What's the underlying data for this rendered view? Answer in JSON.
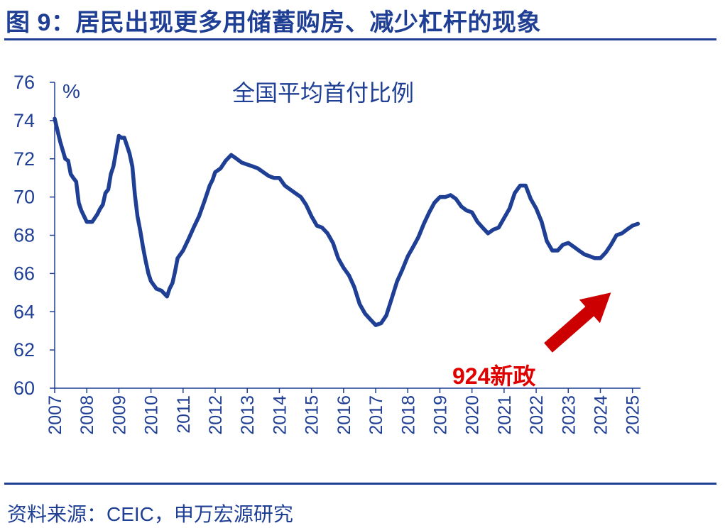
{
  "figure": {
    "title": "图 9：居民出现更多用储蓄购房、减少杠杆的现象",
    "source": "资料来源：CEIC，申万宏源研究"
  },
  "colors": {
    "primary": "#1f3f95",
    "annotation": "#cc0000",
    "annotation_text": "#e00000"
  },
  "chart_data": {
    "type": "line",
    "title": "全国平均首付比例",
    "ylabel": "%",
    "xlabel": "",
    "ylim": [
      60,
      76
    ],
    "yticks": [
      "60",
      "62",
      "64",
      "66",
      "68",
      "70",
      "72",
      "74",
      "76"
    ],
    "xlim": [
      2007,
      2025.25
    ],
    "xticks": [
      "2007",
      "2008",
      "2009",
      "2010",
      "2011",
      "2012",
      "2013",
      "2014",
      "2015",
      "2016",
      "2017",
      "2018",
      "2019",
      "2020",
      "2021",
      "2022",
      "2023",
      "2024",
      "2025"
    ],
    "grid": false,
    "legend": "none",
    "series": [
      {
        "color": "#1f3f95",
        "x": [
          2007.0,
          2007.17,
          2007.33,
          2007.42,
          2007.5,
          2007.58,
          2007.67,
          2007.75,
          2007.83,
          2008.0,
          2008.17,
          2008.33,
          2008.42,
          2008.5,
          2008.58,
          2008.67,
          2008.75,
          2008.83,
          2009.0,
          2009.08,
          2009.17,
          2009.25,
          2009.33,
          2009.42,
          2009.5,
          2009.58,
          2009.67,
          2009.75,
          2009.83,
          2009.92,
          2010.0,
          2010.17,
          2010.33,
          2010.5,
          2010.58,
          2010.67,
          2010.75,
          2010.83,
          2011.0,
          2011.17,
          2011.33,
          2011.5,
          2011.67,
          2011.83,
          2011.92,
          2012.0,
          2012.17,
          2012.33,
          2012.5,
          2012.67,
          2012.83,
          2013.0,
          2013.17,
          2013.33,
          2013.5,
          2013.67,
          2013.83,
          2014.0,
          2014.17,
          2014.33,
          2014.5,
          2014.67,
          2014.83,
          2015.0,
          2015.17,
          2015.33,
          2015.5,
          2015.67,
          2015.83,
          2016.0,
          2016.17,
          2016.33,
          2016.5,
          2016.67,
          2016.83,
          2017.0,
          2017.17,
          2017.33,
          2017.5,
          2017.67,
          2017.83,
          2018.0,
          2018.17,
          2018.33,
          2018.5,
          2018.67,
          2018.83,
          2019.0,
          2019.17,
          2019.33,
          2019.5,
          2019.67,
          2019.83,
          2020.0,
          2020.17,
          2020.33,
          2020.5,
          2020.67,
          2020.83,
          2021.0,
          2021.17,
          2021.33,
          2021.5,
          2021.67,
          2021.83,
          2022.0,
          2022.17,
          2022.33,
          2022.5,
          2022.67,
          2022.83,
          2023.0,
          2023.17,
          2023.33,
          2023.5,
          2023.67,
          2023.83,
          2024.0,
          2024.17,
          2024.33,
          2024.5,
          2024.67,
          2024.83,
          2025.0,
          2025.17
        ],
        "y": [
          74.1,
          72.9,
          72.0,
          71.9,
          71.2,
          71.0,
          70.8,
          69.7,
          69.3,
          68.7,
          68.7,
          69.1,
          69.4,
          69.6,
          70.2,
          70.4,
          71.2,
          71.6,
          73.2,
          73.1,
          73.1,
          72.7,
          72.3,
          71.6,
          70.1,
          69.0,
          68.2,
          67.4,
          66.7,
          66.0,
          65.6,
          65.2,
          65.1,
          64.8,
          65.2,
          65.5,
          66.1,
          66.8,
          67.2,
          67.8,
          68.4,
          69.0,
          69.8,
          70.6,
          70.9,
          71.3,
          71.5,
          71.9,
          72.2,
          72.0,
          71.8,
          71.7,
          71.6,
          71.5,
          71.3,
          71.1,
          71.0,
          71.0,
          70.6,
          70.4,
          70.2,
          70.0,
          69.6,
          69.0,
          68.5,
          68.4,
          68.1,
          67.6,
          66.8,
          66.3,
          65.9,
          65.3,
          64.4,
          63.9,
          63.6,
          63.3,
          63.4,
          63.8,
          64.7,
          65.6,
          66.2,
          66.9,
          67.4,
          67.9,
          68.6,
          69.2,
          69.7,
          70.0,
          70.0,
          70.1,
          69.9,
          69.5,
          69.3,
          69.2,
          68.7,
          68.4,
          68.1,
          68.3,
          68.4,
          68.9,
          69.4,
          70.2,
          70.6,
          70.6,
          69.9,
          69.4,
          68.7,
          67.7,
          67.2,
          67.2,
          67.5,
          67.6,
          67.4,
          67.2,
          67.0,
          66.9,
          66.8,
          66.8,
          67.1,
          67.5,
          68.0,
          68.1,
          68.3,
          68.5,
          68.6
        ]
      }
    ],
    "annotations": [
      {
        "text": "924新政",
        "target_x": 2024.33,
        "target_y": 65.0
      }
    ]
  }
}
